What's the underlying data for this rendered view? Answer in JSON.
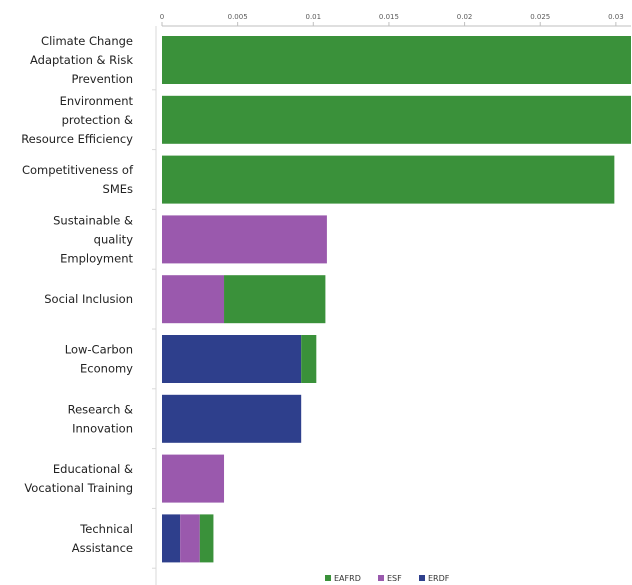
{
  "chart_data": {
    "type": "bar",
    "orientation": "horizontal",
    "stacked": true,
    "title": "",
    "xlabel": "",
    "ylabel": "",
    "xlim": [
      0,
      0.031
    ],
    "x_ticks": [
      "0",
      "0.005",
      "0.01",
      "0.015",
      "0.02",
      "0.025",
      "0.03"
    ],
    "categories": [
      [
        "Climate Change",
        "Adaptation & Risk",
        "Prevention"
      ],
      [
        "Environment",
        "protection &",
        "Resource Efficiency"
      ],
      [
        "Competitiveness of",
        "SMEs"
      ],
      [
        "Sustainable &",
        "quality",
        "Employment"
      ],
      [
        "Social Inclusion"
      ],
      [
        "Low-Carbon",
        "Economy"
      ],
      [
        "Research &",
        "Innovation"
      ],
      [
        "Educational &",
        "Vocational Training"
      ],
      [
        "Technical",
        "Assistance"
      ]
    ],
    "series": [
      {
        "name": "ERDF",
        "color": "#2e3f8c",
        "values": [
          0,
          0,
          0,
          0,
          0,
          0.0092,
          0.0092,
          0,
          0.0012
        ]
      },
      {
        "name": "ESF",
        "color": "#9a59ad",
        "values": [
          0,
          0,
          0,
          0.0109,
          0.0041,
          0,
          0,
          0.0041,
          0.0013
        ]
      },
      {
        "name": "EAFRD",
        "color": "#3a913a",
        "values": [
          0.031,
          0.031,
          0.0299,
          0,
          0.0067,
          0.001,
          0,
          0,
          0.0009
        ]
      }
    ],
    "legend": {
      "position": "bottom",
      "order": [
        "EAFRD",
        "ESF",
        "ERDF"
      ]
    },
    "grid": false
  }
}
